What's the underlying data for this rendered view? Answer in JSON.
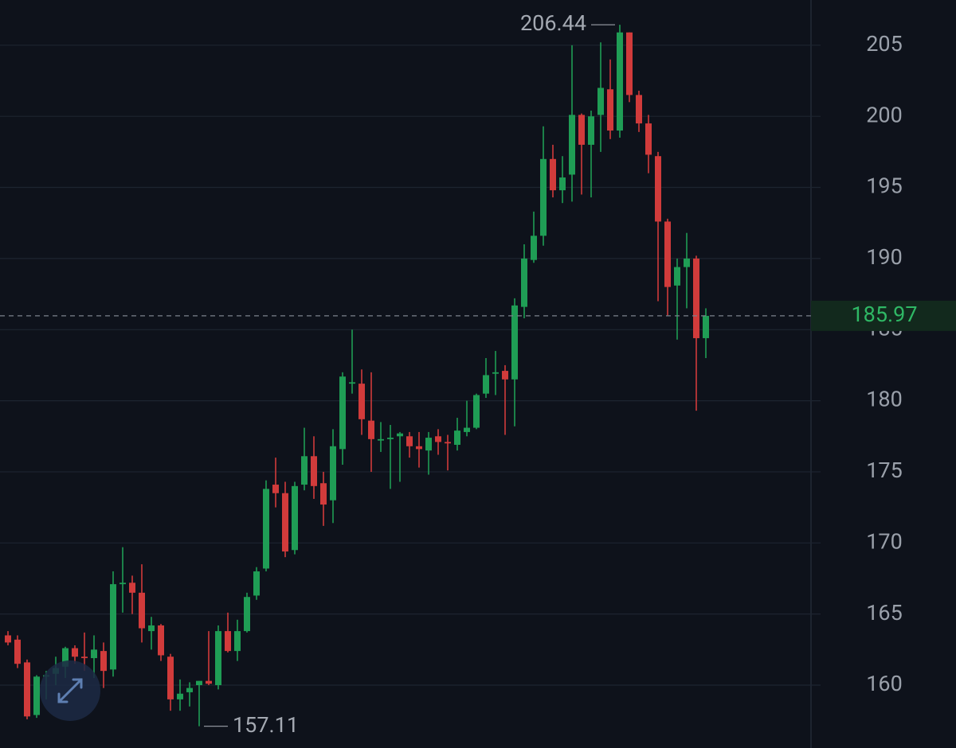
{
  "chart_data": {
    "type": "candlestick",
    "up_color": "#1f9d55",
    "down_color": "#d13b3b",
    "ylim": [
      155.58,
      208.18
    ],
    "yticks": [
      160,
      165,
      170,
      175,
      180,
      185,
      190,
      195,
      200,
      205
    ],
    "grid": true,
    "open": [
      163.5,
      163.2,
      161.6,
      157.9,
      160.6,
      160.8,
      161.3,
      162.6,
      162,
      161.9,
      162.4,
      161.1,
      167.1,
      167.2,
      166.5,
      163.8,
      164.2,
      162,
      159,
      159.5,
      160,
      160.3,
      160,
      163.8,
      162.4,
      163.8,
      166.3,
      168.2,
      174.1,
      173.5,
      169.5,
      174.1,
      176.1,
      174.2,
      173,
      176.6,
      181.2,
      181.2,
      178.6,
      177.2,
      177.3,
      177.5,
      177.5,
      176.8,
      176.5,
      177.5,
      177.1,
      176.9,
      177.8,
      178.1,
      180.5,
      181.9,
      182.1,
      181.5,
      186.6,
      189.9,
      191.6,
      197,
      194.8,
      195.9,
      200.1,
      198,
      200.1,
      201.9,
      199,
      205.9,
      201.5,
      199.5,
      197.2,
      192.6,
      188.1,
      189.4,
      190,
      184.4
    ],
    "high": [
      163.8,
      163.5,
      161.8,
      160.7,
      161,
      162,
      162.7,
      162.8,
      163.7,
      163.5,
      163,
      168,
      169.7,
      167.7,
      168.5,
      164.8,
      164.3,
      162.2,
      160.4,
      160.2,
      160.3,
      163.8,
      164.2,
      165.1,
      164.6,
      166.5,
      168.3,
      174.4,
      176,
      174.3,
      174.3,
      178.1,
      177.5,
      175,
      178,
      182,
      185,
      182.2,
      182,
      178.5,
      178.3,
      177.8,
      177.8,
      177.8,
      177.8,
      178,
      177.6,
      178.8,
      180,
      180.5,
      183,
      183.5,
      182.5,
      187.2,
      191,
      193.3,
      199.3,
      198,
      197.2,
      205,
      200.2,
      200.4,
      205.2,
      204,
      206.44,
      205.9,
      201.8,
      200.1,
      197.5,
      192.8,
      190,
      191.8,
      190.2,
      186.5
    ],
    "low": [
      162.8,
      161.2,
      157.6,
      157.7,
      159,
      160,
      160.5,
      161.5,
      161,
      160.5,
      159.8,
      160.6,
      165.1,
      165,
      163,
      162.5,
      161.7,
      158.2,
      158.2,
      158.5,
      157.11,
      160,
      159.7,
      162.3,
      161.7,
      163.7,
      166,
      168,
      172.5,
      169,
      169.2,
      173.7,
      173.1,
      171.2,
      171.4,
      175.5,
      180.5,
      177.6,
      175,
      176.4,
      173.8,
      174.3,
      176,
      175.3,
      174.8,
      176.2,
      175.1,
      176.5,
      177.5,
      178,
      180.2,
      180.4,
      177.6,
      178.2,
      185.8,
      189.7,
      190.9,
      194.3,
      193.9,
      194,
      194.5,
      194.3,
      197.5,
      198.4,
      198.5,
      201,
      198.9,
      196,
      187,
      186,
      184.3,
      186.5,
      179.3,
      183
    ],
    "close": [
      163,
      161.5,
      157.8,
      160.6,
      160.7,
      161.2,
      162.6,
      162,
      161.9,
      162.5,
      161,
      167.1,
      167.2,
      166.5,
      164,
      164.2,
      162.1,
      159,
      159.4,
      159.8,
      160.3,
      160.1,
      163.8,
      162.4,
      163.8,
      166.2,
      168,
      173.8,
      173.5,
      169.4,
      174,
      176.1,
      174,
      172.7,
      176.8,
      181.7,
      181.3,
      178.7,
      177.3,
      177.3,
      177.4,
      177.7,
      176.8,
      176.6,
      177.4,
      177.1,
      177,
      177.9,
      178.1,
      180.4,
      181.8,
      182,
      181.5,
      186.7,
      190,
      191.6,
      197,
      194.8,
      195.7,
      200.1,
      198,
      200,
      202,
      199,
      205.9,
      201.5,
      199.5,
      197.3,
      192.6,
      188,
      189.4,
      190,
      184.4,
      185.97
    ],
    "annotations": [
      {
        "text": "206.44",
        "value": 206.44
      },
      {
        "text": "157.11",
        "value": 157.11
      }
    ],
    "last_price": {
      "text": "185.97",
      "value": 185.97
    }
  }
}
